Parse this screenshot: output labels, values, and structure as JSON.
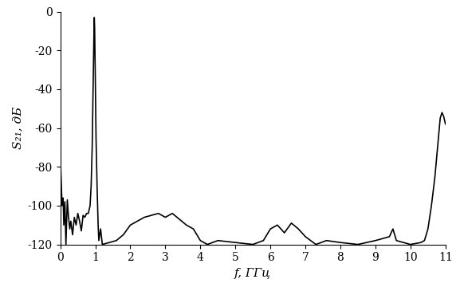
{
  "chart_data": {
    "type": "line",
    "x_label": "f, ГГц",
    "y_label": "S₂₁, дБ",
    "x": [
      0,
      0.02,
      0.05,
      0.08,
      0.1,
      0.13,
      0.16,
      0.2,
      0.23,
      0.27,
      0.3,
      0.35,
      0.4,
      0.45,
      0.5,
      0.55,
      0.6,
      0.65,
      0.7,
      0.75,
      0.8,
      0.85,
      0.88,
      0.91,
      0.94,
      0.96,
      0.97,
      0.98,
      1.0,
      1.02,
      1.05,
      1.08,
      1.1,
      1.15,
      1.2,
      1.4,
      1.6,
      1.8,
      2.0,
      2.2,
      2.4,
      2.6,
      2.8,
      3.0,
      3.2,
      3.4,
      3.6,
      3.8,
      4.0,
      4.2,
      4.5,
      5.0,
      5.5,
      5.8,
      6.0,
      6.2,
      6.4,
      6.6,
      6.8,
      7.0,
      7.3,
      7.6,
      8.0,
      8.5,
      9.0,
      9.4,
      9.5,
      9.6,
      10.0,
      10.3,
      10.4,
      10.5,
      10.6,
      10.7,
      10.8,
      10.85,
      10.9,
      10.95,
      11.0
    ],
    "values": [
      -75,
      -85,
      -100,
      -96,
      -110,
      -98,
      -120,
      -97,
      -105,
      -112,
      -108,
      -115,
      -106,
      -110,
      -104,
      -108,
      -113,
      -105,
      -106,
      -104,
      -104,
      -100,
      -90,
      -70,
      -35,
      -12,
      -3,
      -8,
      -35,
      -65,
      -90,
      -110,
      -118,
      -112,
      -120,
      -119,
      -118,
      -115,
      -110,
      -108,
      -106,
      -105,
      -104,
      -106,
      -104,
      -107,
      -110,
      -112,
      -118,
      -120,
      -118,
      -119,
      -120,
      -118,
      -112,
      -110,
      -114,
      -109,
      -112,
      -116,
      -120,
      -118,
      -119,
      -120,
      -118,
      -116,
      -112,
      -118,
      -120,
      -119,
      -118,
      -112,
      -100,
      -85,
      -65,
      -55,
      -52,
      -54,
      -58
    ],
    "color": "#000000",
    "xlim": [
      0,
      11
    ],
    "xticks": [
      0,
      1,
      2,
      3,
      4,
      5,
      6,
      7,
      8,
      9,
      10,
      11
    ],
    "ylim": [
      -120,
      0
    ],
    "yticks": [
      -120,
      -100,
      -80,
      -60,
      -40,
      -20,
      0
    ],
    "grid": false
  }
}
